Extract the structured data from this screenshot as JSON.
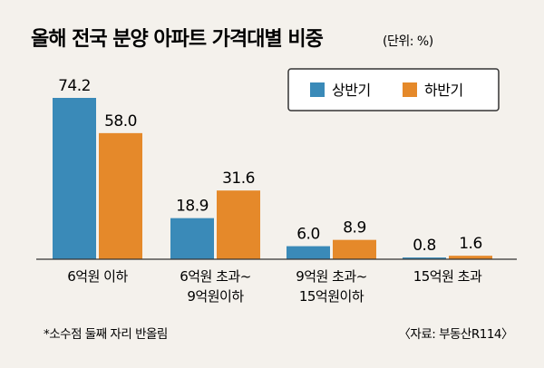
{
  "colors": {
    "background": "#f4f1ec",
    "series_first_half": "#3a8ab8",
    "series_second_half": "#e5892a"
  },
  "chart_data": {
    "type": "bar",
    "title": "올해 전국 분양 아파트 가격대별 비중",
    "unit_note": "(단위: %)",
    "categories": [
      [
        "6억원 이하"
      ],
      [
        "6억원 초과~",
        "9억원이하"
      ],
      [
        "9억원 초과~",
        "15억원이하"
      ],
      [
        "15억원 초과"
      ]
    ],
    "series": [
      {
        "name": "상반기",
        "values": [
          74.2,
          18.9,
          6.0,
          0.8
        ],
        "labels": [
          "74.2",
          "18.9",
          "6.0",
          "0.8"
        ]
      },
      {
        "name": "하반기",
        "values": [
          58.0,
          31.6,
          8.9,
          1.6
        ],
        "labels": [
          "58.0",
          "31.6",
          "8.9",
          "1.6"
        ]
      }
    ],
    "ylim": [
      0,
      80
    ],
    "grid": false,
    "legend_position": "top-right",
    "footnote": "*소수점 둘째 자리 반올림",
    "source": "〈자료: 부동산R114〉"
  }
}
